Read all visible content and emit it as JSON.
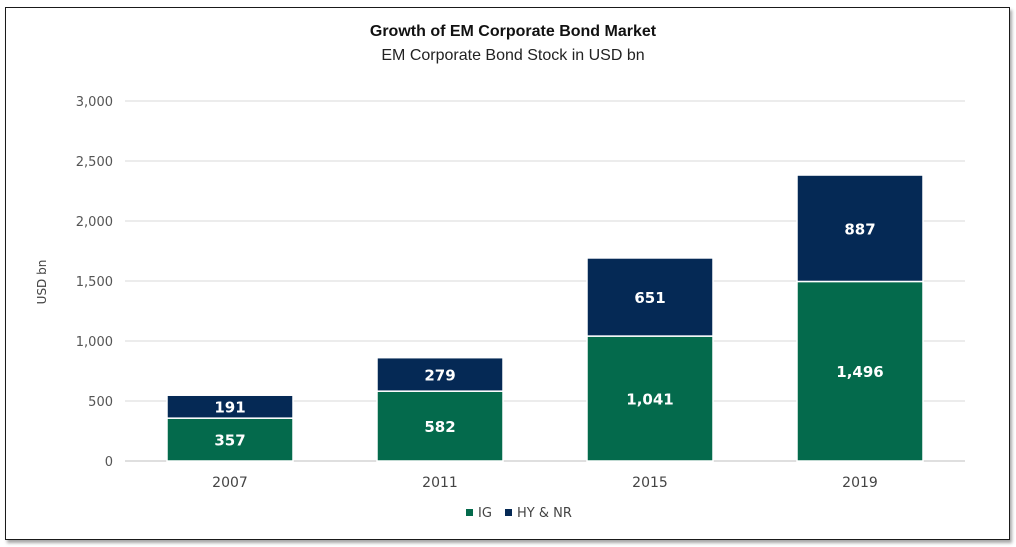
{
  "chart_data": {
    "type": "bar",
    "stacked": true,
    "title": "Growth of EM Corporate Bond Market",
    "subtitle": "EM Corporate Bond Stock in USD bn",
    "xlabel": "",
    "ylabel": "USD bn",
    "ylim": [
      0,
      3000
    ],
    "yticks": [
      0,
      500,
      1000,
      1500,
      2000,
      2500,
      3000
    ],
    "ytick_labels": [
      "0",
      "500",
      "1,000",
      "1,500",
      "2,000",
      "2,500",
      "3,000"
    ],
    "categories": [
      "2007",
      "2011",
      "2015",
      "2019"
    ],
    "series": [
      {
        "name": "IG",
        "values": [
          357,
          582,
          1041,
          1496
        ],
        "labels": [
          "357",
          "582",
          "1,041",
          "1,496"
        ],
        "color": "#046a4c"
      },
      {
        "name": "HY & NR",
        "values": [
          191,
          279,
          651,
          887
        ],
        "labels": [
          "191",
          "279",
          "651",
          "887"
        ],
        "color": "#052955"
      }
    ],
    "grid": true,
    "legend_position": "bottom"
  }
}
